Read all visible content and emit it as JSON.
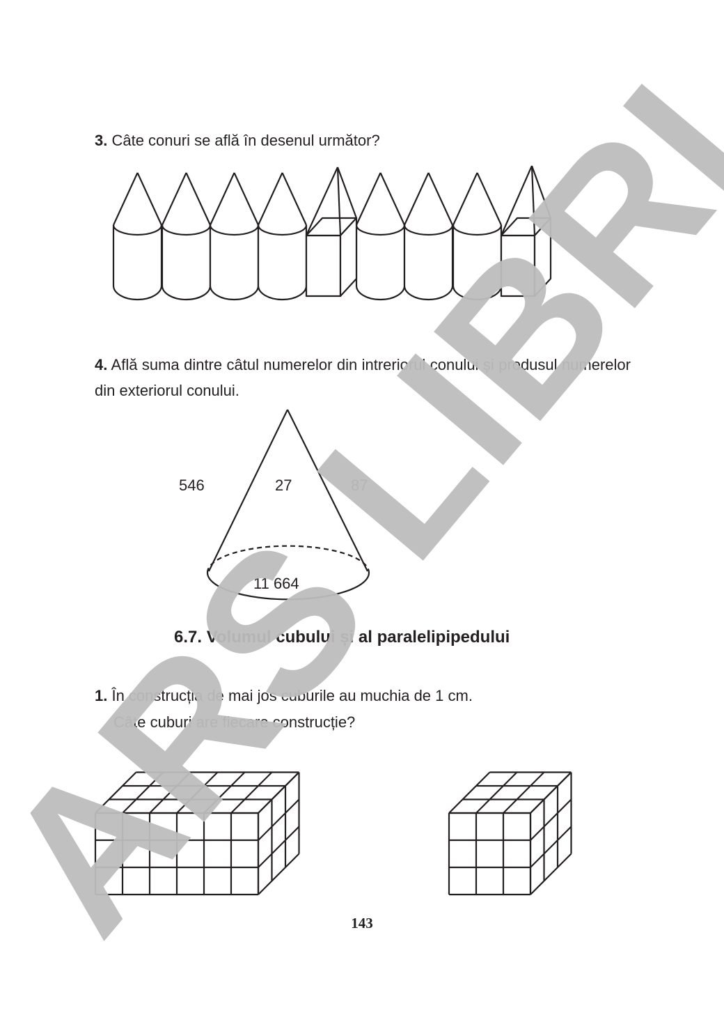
{
  "exercise3": {
    "number": "3.",
    "question": " Câte conuri se află în desenul următor?"
  },
  "exercise4": {
    "number": "4.",
    "question": " Află suma dintre câtul numerelor din intreriorul conului și produsul numerelor din exteriorul conului.",
    "numbers": {
      "outside_left": "546",
      "inside_top": "27",
      "outside_right": "87",
      "inside_base": "11 664"
    }
  },
  "section": {
    "title": "6.7. Volumul cubului și al paralelipipedului"
  },
  "exercise1": {
    "number": "1.",
    "line1": " În construcția de mai jos cuburile au muchia de 1 cm.",
    "line2": "Câte cuburi are fiecare construcție?"
  },
  "page_number": "143",
  "watermark": "ARS LIBRI"
}
